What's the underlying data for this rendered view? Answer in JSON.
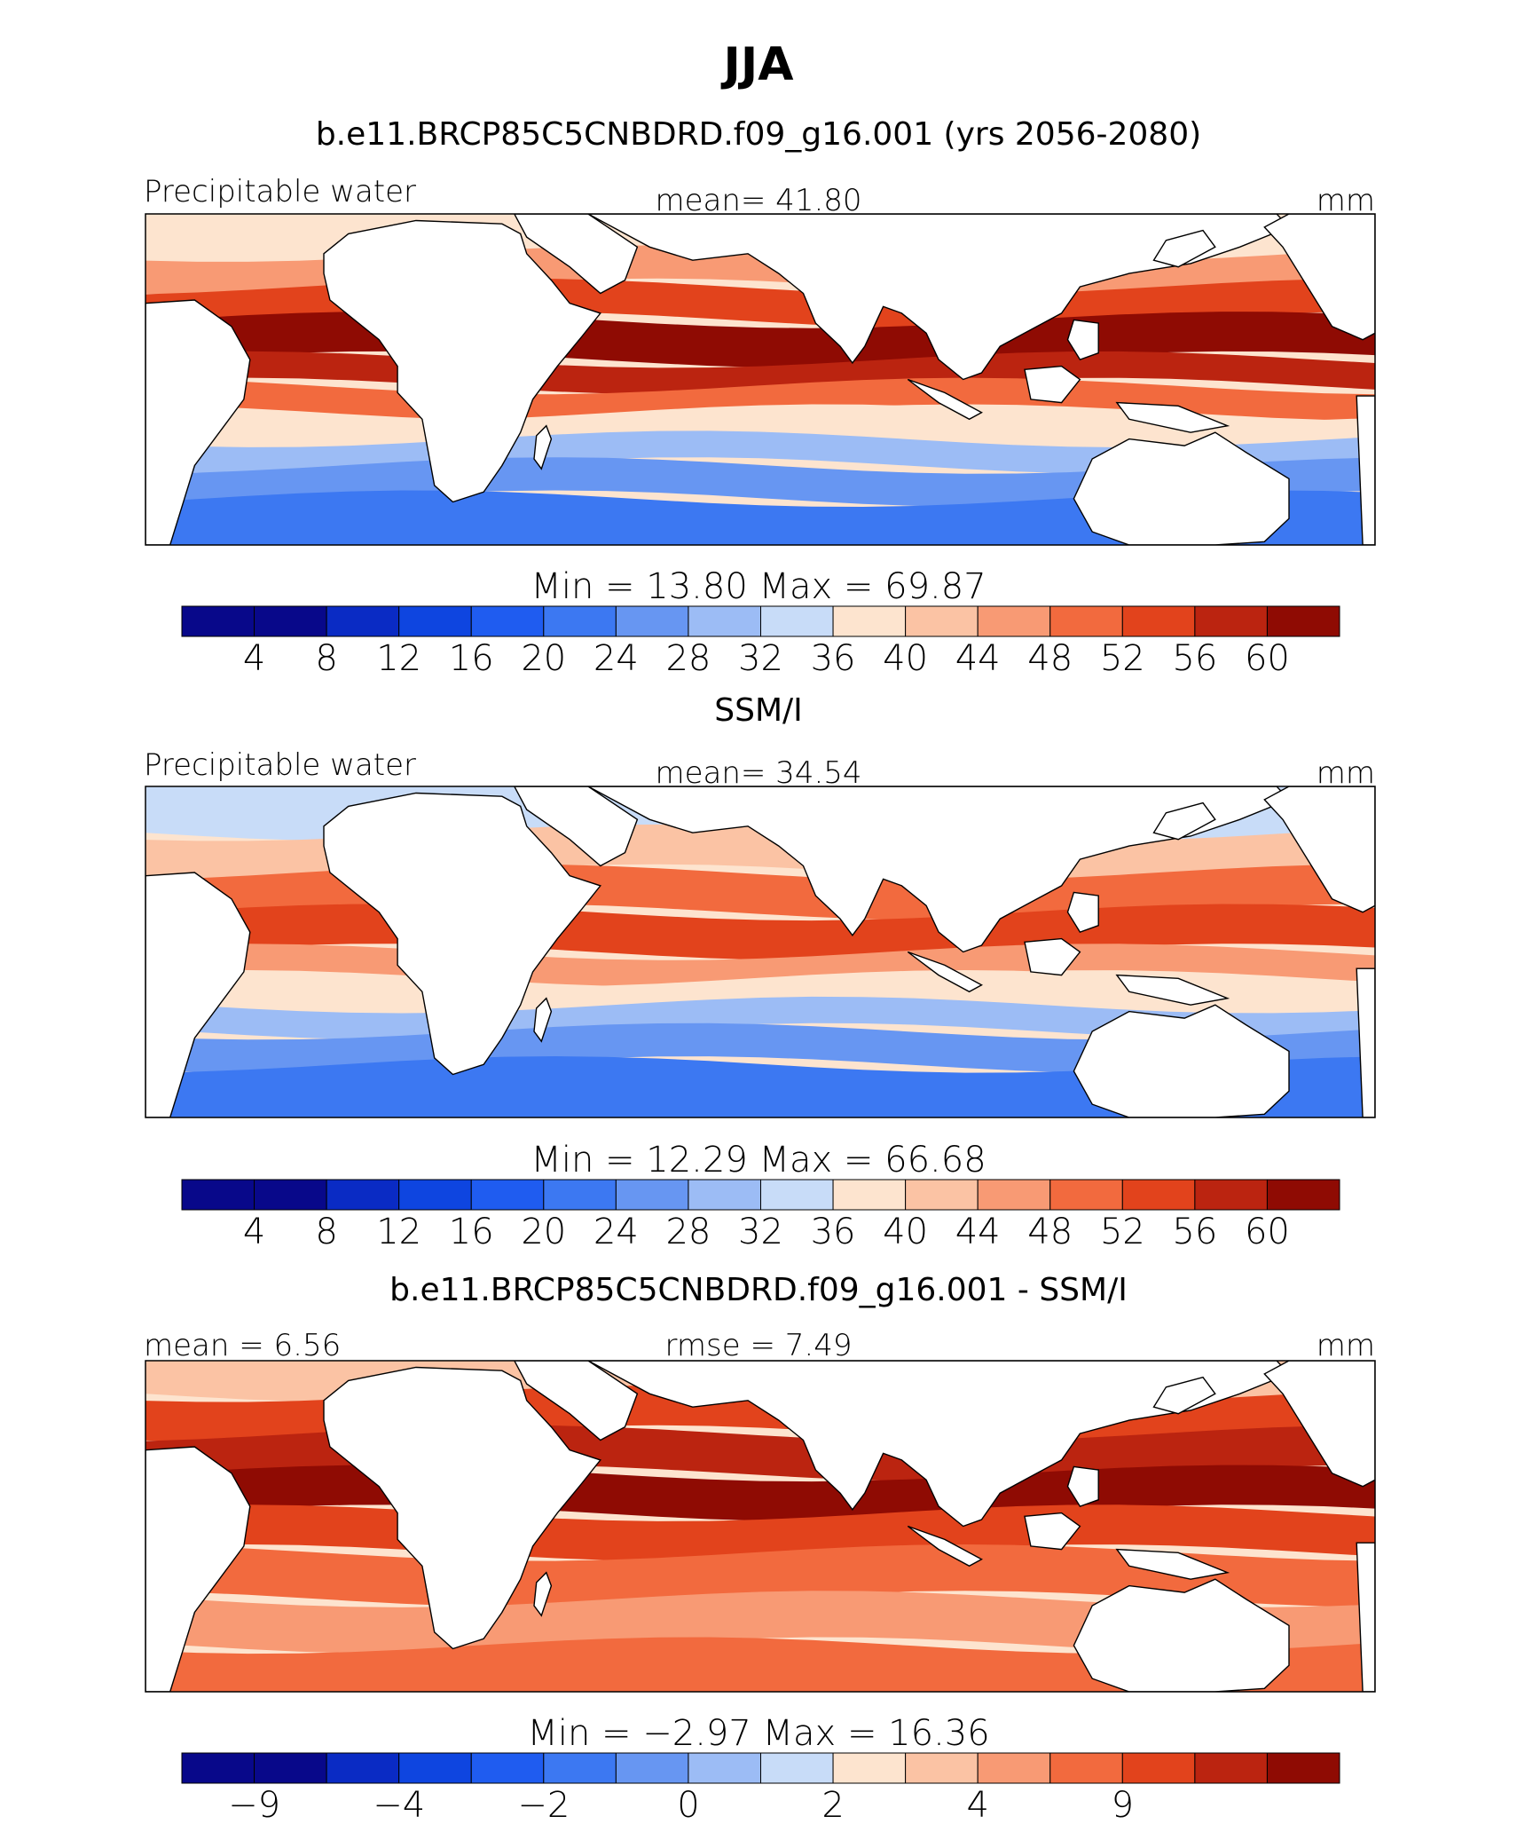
{
  "title": "JJA",
  "panels": [
    {
      "heading": "b.e11.BRCP85C5CNBDRD.f09_g16.001 (yrs 2056-2080)",
      "left_label": "Precipitable water",
      "center_label": "mean=  41.80",
      "right_label": "mm",
      "minmax": "Min =   13.80  Max =   69.87",
      "colorbar_ticks": [
        "4",
        "8",
        "12",
        "16",
        "20",
        "24",
        "28",
        "32",
        "36",
        "40",
        "44",
        "48",
        "52",
        "56",
        "60"
      ],
      "field": "model"
    },
    {
      "heading": "SSM/I",
      "left_label": "Precipitable water",
      "center_label": "mean=  34.54",
      "right_label": "mm",
      "minmax": "Min =   12.29  Max =   66.68",
      "colorbar_ticks": [
        "4",
        "8",
        "12",
        "16",
        "20",
        "24",
        "28",
        "32",
        "36",
        "40",
        "44",
        "48",
        "52",
        "56",
        "60"
      ],
      "field": "obs"
    },
    {
      "heading": "b.e11.BRCP85C5CNBDRD.f09_g16.001 - SSM/I",
      "left_label": "mean =   6.56",
      "center_label": "rmse =   7.49",
      "right_label": "mm",
      "minmax": "Min =  −2.97  Max =   16.36",
      "colorbar_ticks": [
        "−9",
        "",
        "−4",
        "",
        "−2",
        "",
        "0",
        "",
        "2",
        "",
        "4",
        "",
        "9",
        "",
        ""
      ],
      "field": "diff"
    }
  ],
  "palette": [
    "#08088a",
    "#0a2bc4",
    "#0e45e0",
    "#1f5cf0",
    "#3c78f2",
    "#6796f2",
    "#9cbcf5",
    "#c8dcf8",
    "#fde4cf",
    "#fbc3a4",
    "#f89a74",
    "#f26a3e",
    "#e2431c",
    "#bb2410",
    "#8f0b03"
  ],
  "land_color": "#ffffff"
}
